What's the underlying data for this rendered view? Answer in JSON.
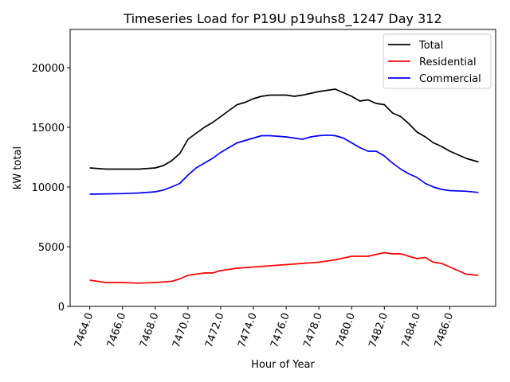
{
  "chart_data": {
    "type": "line",
    "title": "Timeseries Load for P19U p19uhs8_1247  Day 312",
    "xlabel": "Hour of Year",
    "ylabel": "kW total",
    "xlim": [
      7462.8,
      7488.8
    ],
    "ylim": [
      0,
      23200
    ],
    "xticks": [
      7464,
      7466,
      7468,
      7470,
      7472,
      7474,
      7476,
      7478,
      7480,
      7482,
      7484,
      7486
    ],
    "xtick_labels": [
      "7464.0",
      "7466.0",
      "7468.0",
      "7470.0",
      "7472.0",
      "7474.0",
      "7476.0",
      "7478.0",
      "7480.0",
      "7482.0",
      "7484.0",
      "7486.0"
    ],
    "yticks": [
      0,
      5000,
      10000,
      15000,
      20000
    ],
    "ytick_labels": [
      "0",
      "5000",
      "10000",
      "15000",
      "20000"
    ],
    "grid": false,
    "legend_position": "top-right",
    "series": [
      {
        "name": "Total",
        "color": "#000000",
        "x": [
          7464,
          7465,
          7466,
          7467,
          7468,
          7468.5,
          7469,
          7469.5,
          7470,
          7470.5,
          7471,
          7471.5,
          7472,
          7472.5,
          7473,
          7473.5,
          7474,
          7474.5,
          7475,
          7476,
          7476.5,
          7477,
          7478,
          7479,
          7479.5,
          7480,
          7480.5,
          7481,
          7481.5,
          7482,
          7482.5,
          7483,
          7483.5,
          7484,
          7484.5,
          7485,
          7485.5,
          7486,
          7486.5,
          7487,
          7487.75
        ],
        "y": [
          11600,
          11500,
          11500,
          11500,
          11600,
          11800,
          12200,
          12800,
          14000,
          14500,
          15000,
          15400,
          15900,
          16400,
          16900,
          17100,
          17400,
          17600,
          17700,
          17700,
          17600,
          17700,
          18000,
          18200,
          17900,
          17600,
          17200,
          17300,
          17000,
          16900,
          16200,
          15900,
          15300,
          14600,
          14200,
          13700,
          13400,
          13000,
          12700,
          12400,
          12100
        ]
      },
      {
        "name": "Residential",
        "color": "#ff0000",
        "x": [
          7464,
          7465,
          7466,
          7467,
          7468,
          7469,
          7469.5,
          7470,
          7470.5,
          7471,
          7471.5,
          7472,
          7473,
          7474,
          7475,
          7476,
          7477,
          7478,
          7479,
          7480,
          7481,
          7482,
          7482.5,
          7483,
          7483.5,
          7484,
          7484.5,
          7485,
          7485.5,
          7486,
          7486.5,
          7487,
          7487.75
        ],
        "y": [
          2200,
          2000,
          2000,
          1950,
          2000,
          2100,
          2300,
          2600,
          2700,
          2800,
          2800,
          3000,
          3200,
          3300,
          3400,
          3500,
          3600,
          3700,
          3900,
          4200,
          4200,
          4500,
          4400,
          4400,
          4200,
          4000,
          4100,
          3700,
          3600,
          3300,
          3000,
          2700,
          2600
        ]
      },
      {
        "name": "Commercial",
        "color": "#0000ff",
        "x": [
          7464,
          7466,
          7467,
          7468,
          7468.5,
          7469,
          7469.5,
          7470,
          7470.5,
          7471,
          7471.5,
          7472,
          7472.5,
          7473,
          7473.5,
          7474,
          7474.5,
          7475,
          7476,
          7476.5,
          7477,
          7477.5,
          7478,
          7478.5,
          7479,
          7479.5,
          7480,
          7480.5,
          7481,
          7481.5,
          7482,
          7482.5,
          7483,
          7483.5,
          7484,
          7484.5,
          7485,
          7485.5,
          7486,
          7487,
          7487.75
        ],
        "y": [
          9400,
          9450,
          9500,
          9600,
          9750,
          10000,
          10300,
          11000,
          11600,
          12000,
          12400,
          12900,
          13300,
          13700,
          13900,
          14100,
          14300,
          14300,
          14200,
          14100,
          14000,
          14200,
          14300,
          14350,
          14300,
          14100,
          13700,
          13300,
          13000,
          13000,
          12600,
          12000,
          11500,
          11100,
          10800,
          10300,
          10000,
          9800,
          9700,
          9650,
          9550
        ]
      }
    ]
  }
}
